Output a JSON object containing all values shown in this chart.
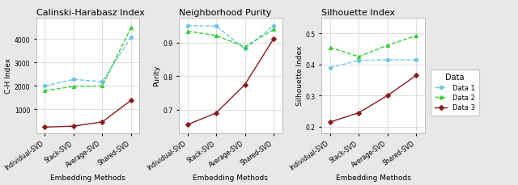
{
  "x_labels": [
    "Individual-SVD",
    "Stack-SVD",
    "Average-SVD",
    "Shared-SVD"
  ],
  "ch_index": {
    "Data 1": [
      2000,
      2280,
      2180,
      4080
    ],
    "Data 2": [
      1800,
      1980,
      2000,
      4480
    ],
    "Data 3": [
      250,
      290,
      470,
      1390
    ]
  },
  "purity": {
    "Data 1": [
      0.952,
      0.95,
      0.882,
      0.952
    ],
    "Data 2": [
      0.935,
      0.922,
      0.888,
      0.94
    ],
    "Data 3": [
      0.655,
      0.69,
      0.775,
      0.912
    ]
  },
  "silhouette": {
    "Data 1": [
      0.39,
      0.413,
      0.415,
      0.415
    ],
    "Data 2": [
      0.455,
      0.425,
      0.462,
      0.492
    ],
    "Data 3": [
      0.215,
      0.245,
      0.3,
      0.365
    ]
  },
  "colors": {
    "Data 1": "#6ec6e8",
    "Data 2": "#33cc33",
    "Data 3": "#8b1a1a"
  },
  "markers": {
    "Data 1": "o",
    "Data 2": "^",
    "Data 3": "D"
  },
  "linestyles": {
    "Data 1": "--",
    "Data 2": "--",
    "Data 3": "-"
  },
  "ch_ylim": [
    0,
    4900
  ],
  "ch_yticks": [
    1000,
    2000,
    3000,
    4000
  ],
  "purity_ylim": [
    0.63,
    0.975
  ],
  "purity_yticks": [
    0.7,
    0.8,
    0.9
  ],
  "silhouette_ylim": [
    0.18,
    0.55
  ],
  "silhouette_yticks": [
    0.2,
    0.3,
    0.4,
    0.5
  ],
  "titles": [
    "Calinski-Harabasz Index",
    "Neighborhood Purity",
    "Silhouette Index"
  ],
  "ylabels": [
    "C-H Index",
    "Purity",
    "Silhouette Index"
  ],
  "xlabel": "Embedding Methods",
  "plot_bg": "#ffffff",
  "fig_bg": "#e8e8e8",
  "legend_title": "Data",
  "legend_labels": [
    "Data 1",
    "Data 2",
    "Data 3"
  ],
  "title_fontsize": 8,
  "label_fontsize": 6.5,
  "tick_fontsize": 5.5,
  "legend_fontsize": 6,
  "legend_title_fontsize": 7
}
